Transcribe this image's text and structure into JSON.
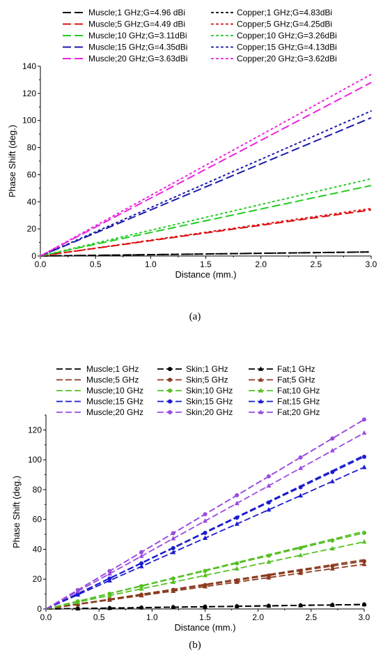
{
  "colors": {
    "1 GHz": "#000000",
    "5 GHz": "#dd1111",
    "10 GHz": "#22cc22",
    "15 GHz": "#1a1aaa",
    "20 GHz": "#ee22dd"
  },
  "colors_b": {
    "1 GHz": "#000000",
    "5 GHz": "#8b3a1e",
    "10 GHz": "#55c023",
    "15 GHz": "#1a1ad0",
    "20 GHz": "#9a4ae0"
  },
  "chart_data": [
    {
      "panel": "a",
      "caption": "(a)",
      "type": "line",
      "xlabel": "Distance (mm.)",
      "ylabel": "Phase Shift (deg.)",
      "xlim": [
        0,
        3.0
      ],
      "ylim": [
        0,
        140
      ],
      "xticks": [
        "0.0",
        "0.5",
        "1.0",
        "1.5",
        "2.0",
        "2.5",
        "3.0"
      ],
      "yticks": [
        "0",
        "20",
        "40",
        "60",
        "80",
        "100",
        "120",
        "140"
      ],
      "grid": false,
      "legend_position": "top, outside plot, two columns",
      "x": [
        0,
        3.0
      ],
      "series": [
        {
          "name": "Muscle;1 GHz;G=4.96 dBi",
          "freq": "1 GHz",
          "style": "dash",
          "values": [
            0,
            3
          ]
        },
        {
          "name": "Muscle;5 GHz;G=4.49 dBi",
          "freq": "5 GHz",
          "style": "dash",
          "values": [
            0,
            34
          ]
        },
        {
          "name": "Muscle;10 GHz;G=3.11dBi",
          "freq": "10 GHz",
          "style": "dash",
          "values": [
            0,
            52
          ]
        },
        {
          "name": "Muscle;15 GHz;G=4.35dBi",
          "freq": "15 GHz",
          "style": "dash",
          "values": [
            0,
            102
          ]
        },
        {
          "name": "Muscle;20 GHz;G=3.63dBi",
          "freq": "20 GHz",
          "style": "dash",
          "values": [
            0,
            128
          ]
        },
        {
          "name": "Copper;1 GHz;G=4.83dBi",
          "freq": "1 GHz",
          "style": "dot",
          "values": [
            0,
            3
          ]
        },
        {
          "name": "Copper;5 GHz;G=4.25dBi",
          "freq": "5 GHz",
          "style": "dot",
          "values": [
            0,
            35
          ]
        },
        {
          "name": "Copper;10 GHz;G=3.26dBi",
          "freq": "10 GHz",
          "style": "dot",
          "values": [
            0,
            57
          ]
        },
        {
          "name": "Copper;15 GHz;G=4.13dBi",
          "freq": "15 GHz",
          "style": "dot",
          "values": [
            0,
            107
          ]
        },
        {
          "name": "Copper;20 GHz;G=3.62dBi",
          "freq": "20 GHz",
          "style": "dot",
          "values": [
            0,
            134
          ]
        }
      ]
    },
    {
      "panel": "b",
      "caption": "(b)",
      "type": "line",
      "xlabel": "Distance (mm.)",
      "ylabel": "Phase Shift (deg.)",
      "xlim": [
        0,
        3.0
      ],
      "ylim": [
        0,
        130
      ],
      "xticks": [
        "0.0",
        "0.5",
        "1.0",
        "1.5",
        "2.0",
        "2.5",
        "3.0"
      ],
      "yticks": [
        "0",
        "20",
        "40",
        "60",
        "80",
        "100",
        "120"
      ],
      "grid": false,
      "legend_position": "top, outside plot, three columns",
      "x": [
        0,
        0.3,
        0.6,
        0.9,
        1.2,
        1.5,
        1.8,
        2.1,
        2.4,
        2.7,
        3.0
      ],
      "series": [
        {
          "name": "Muscle;1 GHz",
          "freq": "1 GHz",
          "marker": "none",
          "values": [
            0,
            0.3,
            0.6,
            0.9,
            1.2,
            1.5,
            1.8,
            2.1,
            2.4,
            2.7,
            3.0
          ]
        },
        {
          "name": "Muscle;5 GHz",
          "freq": "5 GHz",
          "marker": "none",
          "values": [
            0,
            3.3,
            6.6,
            9.9,
            13.2,
            16.5,
            19.8,
            23.1,
            26.4,
            29.7,
            33
          ]
        },
        {
          "name": "Muscle;10 GHz",
          "freq": "10 GHz",
          "marker": "none",
          "values": [
            0,
            5.2,
            10.4,
            15.6,
            20.8,
            26,
            31.2,
            36.4,
            41.6,
            46.8,
            52
          ]
        },
        {
          "name": "Muscle;15 GHz",
          "freq": "15 GHz",
          "marker": "none",
          "values": [
            0,
            10.3,
            20.6,
            30.9,
            41.2,
            51.5,
            61.8,
            72.1,
            82.4,
            92.7,
            103
          ]
        },
        {
          "name": "Muscle;20 GHz",
          "freq": "20 GHz",
          "marker": "none",
          "values": [
            0,
            12.7,
            25.4,
            38.1,
            50.8,
            63.5,
            76.2,
            88.9,
            101.6,
            114.3,
            127
          ]
        },
        {
          "name": "Skin;1 GHz",
          "freq": "1 GHz",
          "marker": "circle",
          "values": [
            0,
            0.3,
            0.6,
            0.9,
            1.2,
            1.5,
            1.8,
            2.1,
            2.4,
            2.7,
            3.0
          ]
        },
        {
          "name": "Skin;5 GHz",
          "freq": "5 GHz",
          "marker": "circle",
          "values": [
            0,
            3.2,
            6.4,
            9.6,
            12.8,
            16,
            19.2,
            22.4,
            25.6,
            28.8,
            32
          ]
        },
        {
          "name": "Skin;10 GHz",
          "freq": "10 GHz",
          "marker": "circle",
          "values": [
            0,
            5.1,
            10.2,
            15.3,
            20.4,
            25.5,
            30.6,
            35.7,
            40.8,
            45.9,
            51
          ]
        },
        {
          "name": "Skin;15 GHz",
          "freq": "15 GHz",
          "marker": "circle",
          "values": [
            0,
            10.2,
            20.4,
            30.6,
            40.8,
            51,
            61.2,
            71.4,
            81.6,
            91.8,
            102
          ]
        },
        {
          "name": "Skin;20 GHz",
          "freq": "20 GHz",
          "marker": "circle",
          "values": [
            0,
            12.7,
            25.4,
            38.1,
            50.8,
            63.5,
            76.2,
            88.9,
            101.6,
            114.3,
            127
          ]
        },
        {
          "name": "Fat;1 GHz",
          "freq": "1 GHz",
          "marker": "triangle",
          "values": [
            0,
            0.3,
            0.6,
            0.9,
            1.2,
            1.5,
            1.8,
            2.1,
            2.4,
            2.7,
            3.0
          ]
        },
        {
          "name": "Fat;5 GHz",
          "freq": "5 GHz",
          "marker": "triangle",
          "values": [
            0,
            3.0,
            6.0,
            9.0,
            12.0,
            15.0,
            18.0,
            21.0,
            24.0,
            27.0,
            30
          ]
        },
        {
          "name": "Fat;10 GHz",
          "freq": "10 GHz",
          "marker": "triangle",
          "values": [
            0,
            4.5,
            9.0,
            13.5,
            18.0,
            22.5,
            27.0,
            31.5,
            36.0,
            40.5,
            45
          ]
        },
        {
          "name": "Fat;15 GHz",
          "freq": "15 GHz",
          "marker": "triangle",
          "values": [
            0,
            9.5,
            19.0,
            28.5,
            38.0,
            47.5,
            57.0,
            66.5,
            76.0,
            85.5,
            95
          ]
        },
        {
          "name": "Fat;20 GHz",
          "freq": "20 GHz",
          "marker": "triangle",
          "values": [
            0,
            11.8,
            23.6,
            35.4,
            47.2,
            59.0,
            70.8,
            82.6,
            94.4,
            106.2,
            118
          ]
        }
      ]
    }
  ]
}
